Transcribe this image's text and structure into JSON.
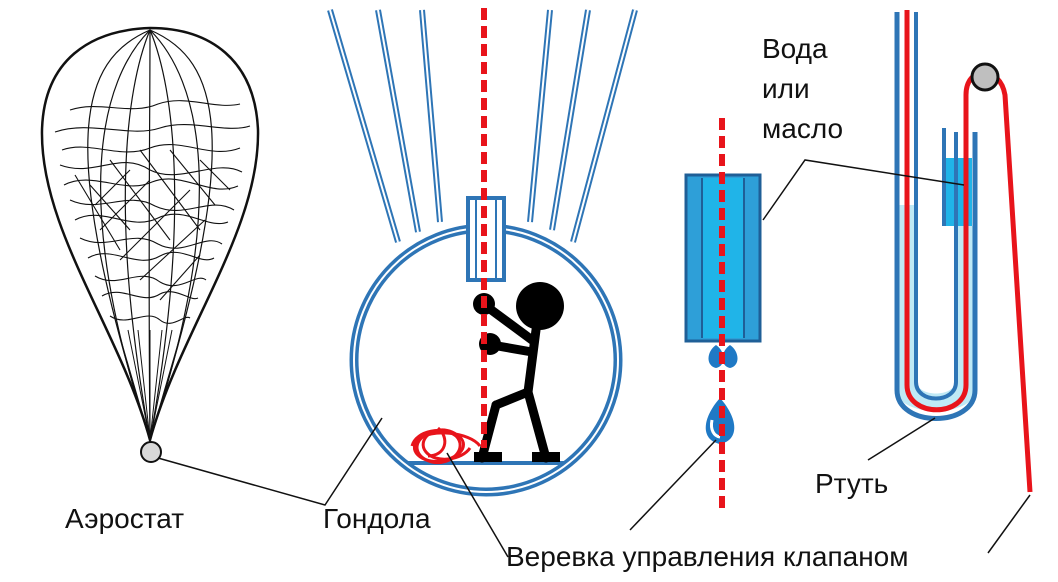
{
  "labels": {
    "aerostat": "Аэростат",
    "gondola": "Гондола",
    "rope": "Веревка управления клапаном",
    "liquid_line1": "Вода",
    "liquid_line2": "или",
    "liquid_line3": "масло",
    "mercury": "Ртуть"
  },
  "colors": {
    "rope": "#e8141b",
    "frame_blue": "#2e75b6",
    "water_light": "#bfe9f5",
    "water_bright": "#20b4e8",
    "ink": "#111111"
  }
}
